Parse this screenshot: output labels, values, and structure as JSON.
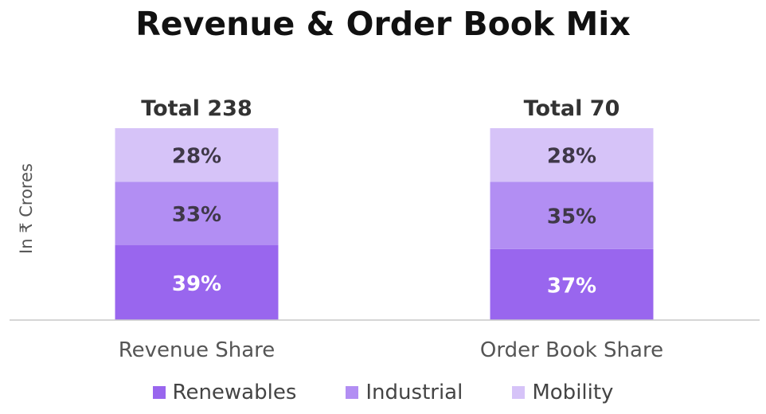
{
  "chart_data": {
    "type": "bar",
    "stacked": true,
    "title": "Revenue & Order Book Mix",
    "ylabel": "In ₹ Crores",
    "categories": [
      "Revenue Share",
      "Order Book Share"
    ],
    "totals": [
      "Total 238",
      "Total 70"
    ],
    "series": [
      {
        "name": "Renewables",
        "values": [
          39,
          37
        ],
        "labels": [
          "39%",
          "37%"
        ],
        "color": "#9966ee",
        "label_color": "#ffffff"
      },
      {
        "name": "Industrial",
        "values": [
          33,
          35
        ],
        "labels": [
          "33%",
          "35%"
        ],
        "color": "#b28ef3",
        "label_color": "#3f3848"
      },
      {
        "name": "Mobility",
        "values": [
          28,
          28
        ],
        "labels": [
          "28%",
          "28%"
        ],
        "color": "#d6c3f8",
        "label_color": "#3f3848"
      }
    ],
    "ylim": [
      0,
      100
    ],
    "legend_position": "bottom",
    "grid": false
  }
}
